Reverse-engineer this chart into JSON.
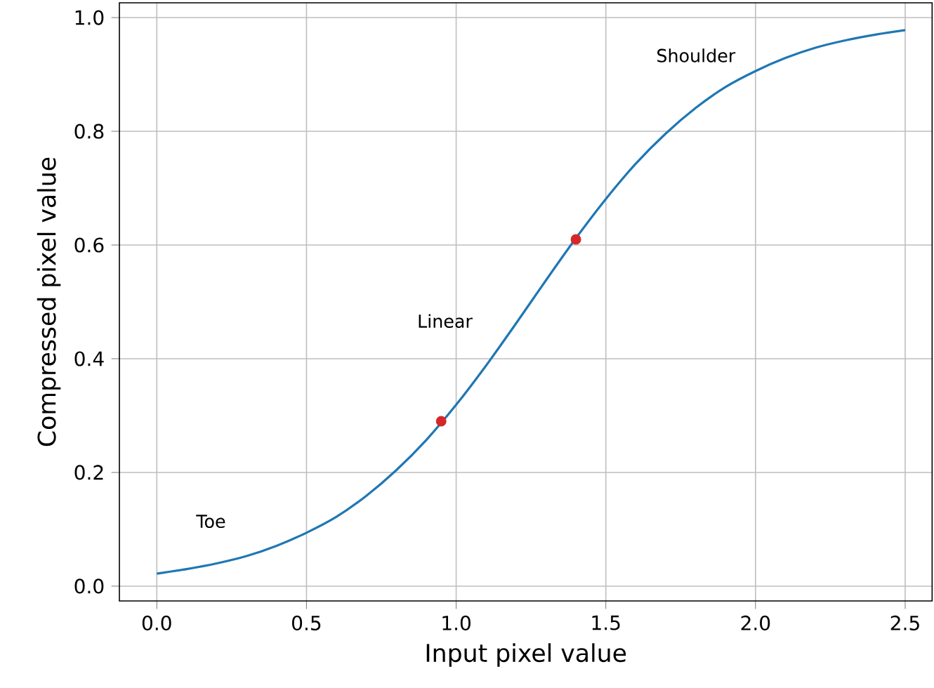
{
  "chart_data": {
    "type": "line",
    "xlabel": "Input pixel value",
    "ylabel": "Compressed pixel value",
    "series": [
      {
        "color": "#1f77b4",
        "x": [
          0,
          0.1,
          0.2,
          0.3,
          0.4,
          0.5,
          0.6,
          0.7,
          0.8,
          0.9,
          1.0,
          1.1,
          1.2,
          1.3,
          1.4,
          1.5,
          1.6,
          1.7,
          1.8,
          1.9,
          2.0,
          2.1,
          2.2,
          2.3,
          2.4,
          2.5
        ],
        "values": [
          0.022,
          0.03,
          0.04,
          0.053,
          0.071,
          0.094,
          0.122,
          0.159,
          0.204,
          0.257,
          0.319,
          0.388,
          0.462,
          0.538,
          0.612,
          0.681,
          0.743,
          0.796,
          0.841,
          0.878,
          0.906,
          0.929,
          0.947,
          0.96,
          0.97,
          0.978
        ]
      },
      {
        "type": "scatter",
        "color": "#d62728",
        "marker": "circle",
        "x": [
          0.95,
          1.4
        ],
        "values": [
          0.29,
          0.61
        ]
      }
    ],
    "annotations": [
      "Toe",
      "Linear",
      "Shoulder"
    ],
    "xlim": [
      -0.125,
      2.59
    ],
    "ylim": [
      -0.026,
      1.026
    ],
    "xticks": [
      {
        "value": 0,
        "label": "0.0"
      },
      0.5,
      {
        "value": 1,
        "label": "1.0"
      },
      1.5,
      {
        "value": 2,
        "label": "2.0"
      },
      2.5
    ],
    "yticks": [
      {
        "value": 0,
        "label": "0.0"
      },
      0.2,
      0.4,
      0.6,
      0.8,
      {
        "value": 1,
        "label": "1.0"
      }
    ],
    "grid": true
  }
}
